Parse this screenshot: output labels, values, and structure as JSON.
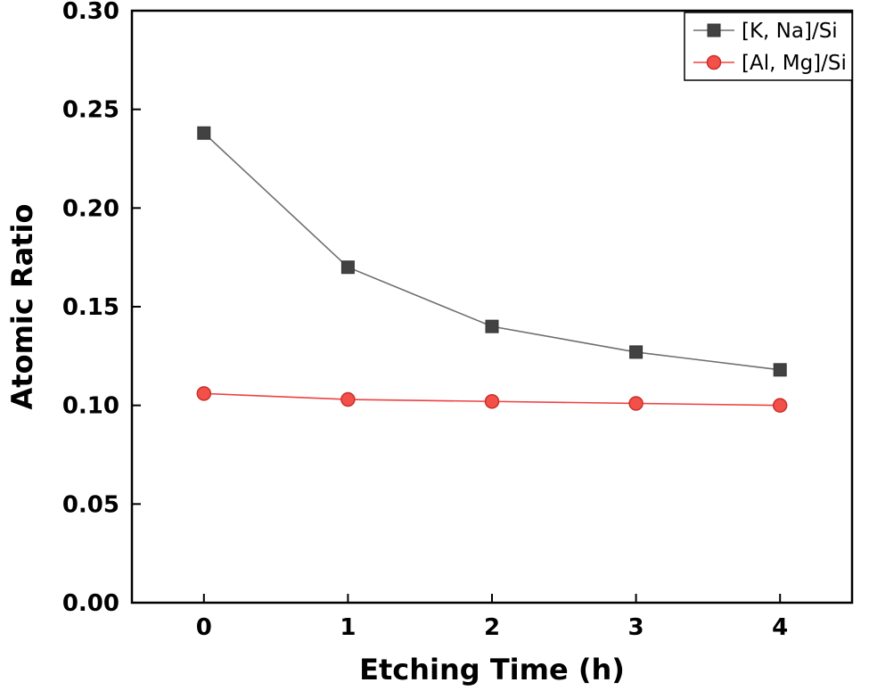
{
  "figure": {
    "background": "#ffffff",
    "frame_color": "#000000"
  },
  "chart_data": {
    "type": "line",
    "title": "",
    "xlabel": "Etching Time (h)",
    "ylabel": "Atomic Ratio",
    "xlim": [
      -0.5,
      4.5
    ],
    "ylim": [
      0.0,
      0.3
    ],
    "x": [
      0,
      1,
      2,
      3,
      4
    ],
    "xticks": [
      0,
      1,
      2,
      3,
      4
    ],
    "xtick_labels": [
      "0",
      "1",
      "2",
      "3",
      "4"
    ],
    "yticks": [
      0.0,
      0.05,
      0.1,
      0.15,
      0.2,
      0.25,
      0.3
    ],
    "ytick_labels": [
      "0.00",
      "0.05",
      "0.10",
      "0.15",
      "0.20",
      "0.25",
      "0.30"
    ],
    "grid": false,
    "legend_position": "top-right",
    "series": [
      {
        "name": "[K, Na]/Si",
        "marker": "square",
        "line_color": "#6e6e6e",
        "marker_color": "#424242",
        "marker_edge": "#333333",
        "values": [
          0.238,
          0.17,
          0.14,
          0.127,
          0.118
        ]
      },
      {
        "name": "[Al, Mg]/Si",
        "marker": "circle",
        "line_color": "#ef4141",
        "marker_color": "#f25048",
        "marker_edge": "#c8302c",
        "values": [
          0.106,
          0.103,
          0.102,
          0.101,
          0.1
        ]
      }
    ]
  }
}
